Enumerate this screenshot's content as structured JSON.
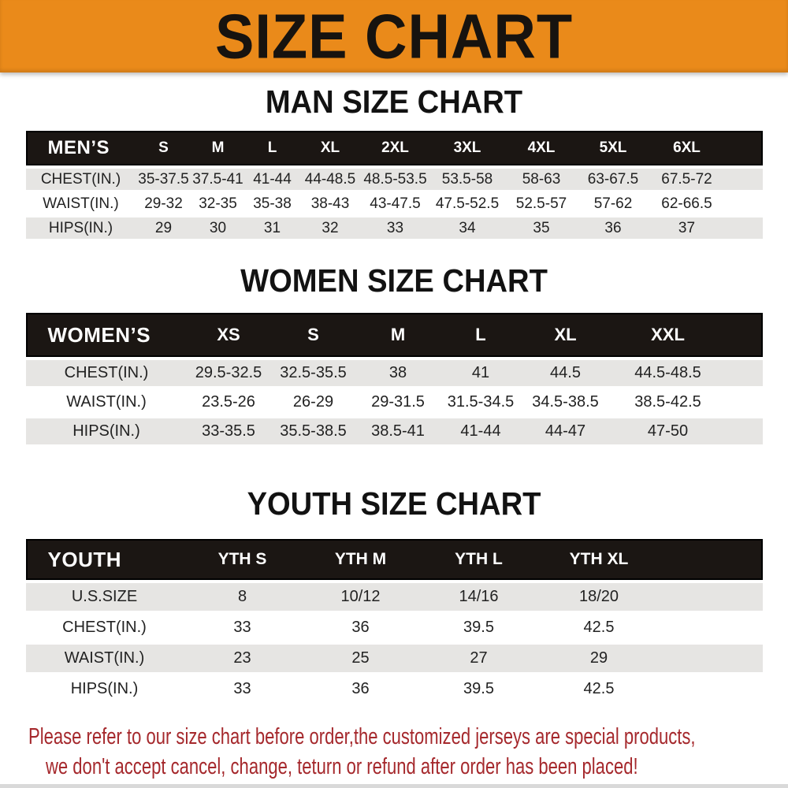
{
  "banner": {
    "title": "SIZE CHART"
  },
  "colors": {
    "banner_bg": "#EA8A1A",
    "header_bar_bg": "#1B1613",
    "row_alt_bg": "#E6E5E3",
    "footer_text": "#A5282C"
  },
  "sections": [
    {
      "title": "MAN SIZE CHART",
      "header_label": "MEN’S",
      "columns": [
        "S",
        "M",
        "L",
        "XL",
        "2XL",
        "3XL",
        "4XL",
        "5XL",
        "6XL"
      ],
      "rows": [
        {
          "label": "CHEST(IN.)",
          "values": [
            "35-37.5",
            "37.5-41",
            "41-44",
            "44-48.5",
            "48.5-53.5",
            "53.5-58",
            "58-63",
            "63-67.5",
            "67.5-72"
          ]
        },
        {
          "label": "WAIST(IN.)",
          "values": [
            "29-32",
            "32-35",
            "35-38",
            "38-43",
            "43-47.5",
            "47.5-52.5",
            "52.5-57",
            "57-62",
            "62-66.5"
          ]
        },
        {
          "label": "HIPS(IN.)",
          "values": [
            "29",
            "30",
            "31",
            "32",
            "33",
            "34",
            "35",
            "36",
            "37"
          ]
        }
      ]
    },
    {
      "title": "WOMEN SIZE CHART",
      "header_label": "WOMEN’S",
      "columns": [
        "XS",
        "S",
        "M",
        "L",
        "XL",
        "XXL"
      ],
      "rows": [
        {
          "label": "CHEST(IN.)",
          "values": [
            "29.5-32.5",
            "32.5-35.5",
            "38",
            "41",
            "44.5",
            "44.5-48.5"
          ]
        },
        {
          "label": "WAIST(IN.)",
          "values": [
            "23.5-26",
            "26-29",
            "29-31.5",
            "31.5-34.5",
            "34.5-38.5",
            "38.5-42.5"
          ]
        },
        {
          "label": "HIPS(IN.)",
          "values": [
            "33-35.5",
            "35.5-38.5",
            "38.5-41",
            "41-44",
            "44-47",
            "47-50"
          ]
        }
      ]
    },
    {
      "title": "YOUTH SIZE CHART",
      "header_label": "YOUTH",
      "columns": [
        "YTH S",
        "YTH M",
        "YTH L",
        "YTH XL"
      ],
      "rows": [
        {
          "label": "U.S.SIZE",
          "values": [
            "8",
            "10/12",
            "14/16",
            "18/20"
          ]
        },
        {
          "label": "CHEST(IN.)",
          "values": [
            "33",
            "36",
            "39.5",
            "42.5"
          ]
        },
        {
          "label": "WAIST(IN.)",
          "values": [
            "23",
            "25",
            "27",
            "29"
          ]
        },
        {
          "label": "HIPS(IN.)",
          "values": [
            "33",
            "36",
            "39.5",
            "42.5"
          ]
        }
      ]
    }
  ],
  "footer": {
    "line1": "Please refer to our size chart before order,the customized jerseys are special products,",
    "line2": "we don't accept cancel, change, teturn or refund after order has been placed!"
  }
}
